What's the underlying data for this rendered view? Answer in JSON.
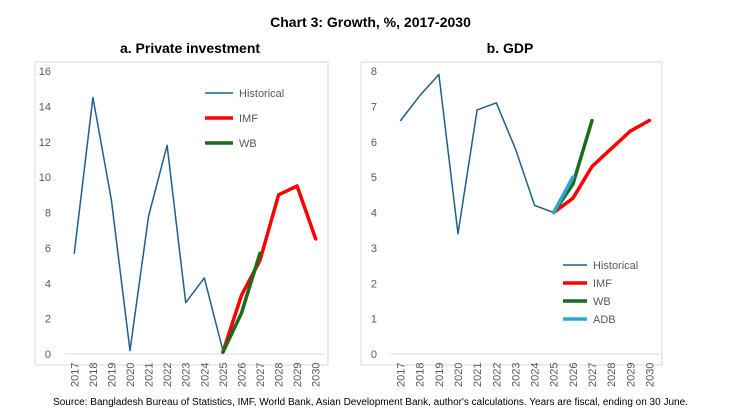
{
  "title": "Chart 3: Growth, %, 2017-2030",
  "source": "Source: Bangladesh Bureau of Statistics, IMF, World Bank, Asian Development Bank, author's calculations. Years are fiscal, ending on 30 June.",
  "colors": {
    "historical": "#1f5f8b",
    "imf": "#ff0000",
    "wb": "#1e6b1e",
    "adb": "#2ba6d6",
    "axis": "#d9d9d9",
    "tick": "#595959"
  },
  "chart_data": [
    {
      "type": "line",
      "panel_title": "a.   Private investment",
      "categories": [
        "2017",
        "2018",
        "2019",
        "2020",
        "2021",
        "2022",
        "2023",
        "2024",
        "2025",
        "2026",
        "2027",
        "2028",
        "2029",
        "2030"
      ],
      "ylim": [
        0,
        16
      ],
      "yticks": [
        0,
        2,
        4,
        6,
        8,
        10,
        12,
        14,
        16
      ],
      "legend_position": "top-right",
      "series": [
        {
          "name": "Historical",
          "color_key": "historical",
          "x": [
            "2017",
            "2018",
            "2019",
            "2020",
            "2021",
            "2022",
            "2023",
            "2024",
            "2025"
          ],
          "values": [
            5.7,
            14.5,
            8.7,
            0.2,
            7.8,
            11.8,
            2.9,
            4.3,
            0.2
          ]
        },
        {
          "name": "IMF",
          "color_key": "imf",
          "x": [
            "2025",
            "2026",
            "2027",
            "2028",
            "2029",
            "2030"
          ],
          "values": [
            0.1,
            3.3,
            5.3,
            9.0,
            9.5,
            6.5
          ]
        },
        {
          "name": "WB",
          "color_key": "wb",
          "x": [
            "2025",
            "2026",
            "2027"
          ],
          "values": [
            0.1,
            2.3,
            5.7
          ]
        }
      ]
    },
    {
      "type": "line",
      "panel_title": "b.   GDP",
      "categories": [
        "2017",
        "2018",
        "2019",
        "2020",
        "2021",
        "2022",
        "2023",
        "2024",
        "2025",
        "2026",
        "2027",
        "2028",
        "2029",
        "2030"
      ],
      "ylim": [
        0,
        8
      ],
      "yticks": [
        0,
        1,
        2,
        3,
        4,
        5,
        6,
        7,
        8
      ],
      "legend_position": "bottom-right",
      "series": [
        {
          "name": "Historical",
          "color_key": "historical",
          "x": [
            "2017",
            "2018",
            "2019",
            "2020",
            "2021",
            "2022",
            "2023",
            "2024",
            "2025"
          ],
          "values": [
            6.6,
            7.3,
            7.9,
            3.4,
            6.9,
            7.1,
            5.8,
            4.2,
            4.0
          ]
        },
        {
          "name": "IMF",
          "color_key": "imf",
          "x": [
            "2025",
            "2026",
            "2027",
            "2028",
            "2029",
            "2030"
          ],
          "values": [
            4.0,
            4.4,
            5.3,
            5.8,
            6.3,
            6.6
          ]
        },
        {
          "name": "WB",
          "color_key": "wb",
          "x": [
            "2025",
            "2026",
            "2027"
          ],
          "values": [
            4.0,
            4.8,
            6.6
          ]
        },
        {
          "name": "ADB",
          "color_key": "adb",
          "x": [
            "2025",
            "2026"
          ],
          "values": [
            4.0,
            5.0
          ]
        }
      ]
    }
  ]
}
